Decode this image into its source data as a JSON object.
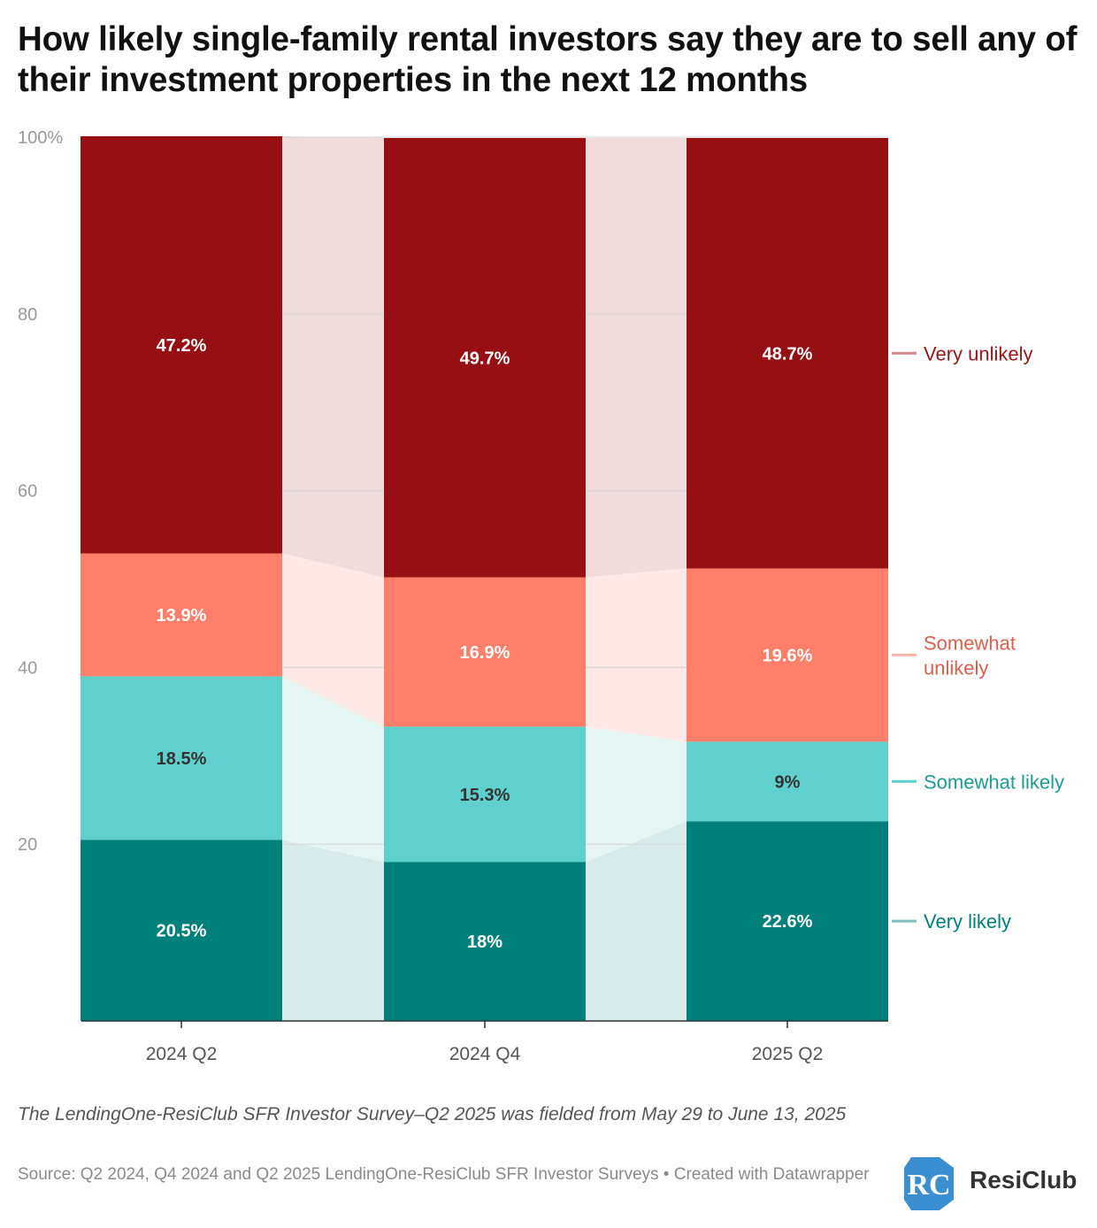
{
  "title": "How likely single-family rental investors say they are to sell any of their investment properties in the next 12 months",
  "notes": "The LendingOne-ResiClub SFR Investor Survey–Q2 2025 was fielded from May 29 to June 13, 2025",
  "source": "Source: Q2 2024, Q4 2024 and Q2 2025 LendingOne-ResiClub SFR Investor Surveys • Created with Datawrapper",
  "logo": {
    "text": "ResiClub",
    "mark": "RC"
  },
  "chart_data": {
    "type": "bar",
    "stacked": true,
    "categories": [
      "2024 Q2",
      "2024 Q4",
      "2025 Q2"
    ],
    "ylim": [
      0,
      100
    ],
    "yticks": [
      {
        "value": 100,
        "label": "100%"
      },
      {
        "value": 80,
        "label": "80"
      },
      {
        "value": 60,
        "label": "60"
      },
      {
        "value": 40,
        "label": "40"
      },
      {
        "value": 20,
        "label": "20"
      }
    ],
    "grid": true,
    "legend_position": "right",
    "series": [
      {
        "name": "Very likely",
        "values": [
          20.5,
          18,
          22.6
        ],
        "labels": [
          "20.5%",
          "18%",
          "22.6%"
        ],
        "color": "#00807d",
        "band_color": "#d8ebea",
        "label_color": "#ffffff",
        "legend_color": "#00807d",
        "legend_line": "#7fbfbe"
      },
      {
        "name": "Somewhat likely",
        "values": [
          18.5,
          15.3,
          9
        ],
        "labels": [
          "18.5%",
          "15.3%",
          "9%"
        ],
        "color": "#5fd0cb",
        "band_color": "#e6f6f5",
        "label_color": "#333333",
        "legend_color": "#1c9a94",
        "legend_line": "#5fd0cb"
      },
      {
        "name": "Somewhat unlikely",
        "values": [
          13.9,
          16.9,
          19.6
        ],
        "labels": [
          "13.9%",
          "16.9%",
          "19.6%"
        ],
        "color": "#ff7f6b",
        "band_color": "#ffe9e7",
        "label_color": "#ffffff",
        "legend_color": "#d9604d",
        "legend_line": "#ffb1a6"
      },
      {
        "name": "Very unlikely",
        "values": [
          47.2,
          49.7,
          48.7
        ],
        "labels": [
          "47.2%",
          "49.7%",
          "48.7%"
        ],
        "color": "#961013",
        "band_color": "#efdcdb",
        "label_color": "#ffffff",
        "legend_color": "#9a1416",
        "legend_line": "#d08a8b"
      }
    ]
  }
}
